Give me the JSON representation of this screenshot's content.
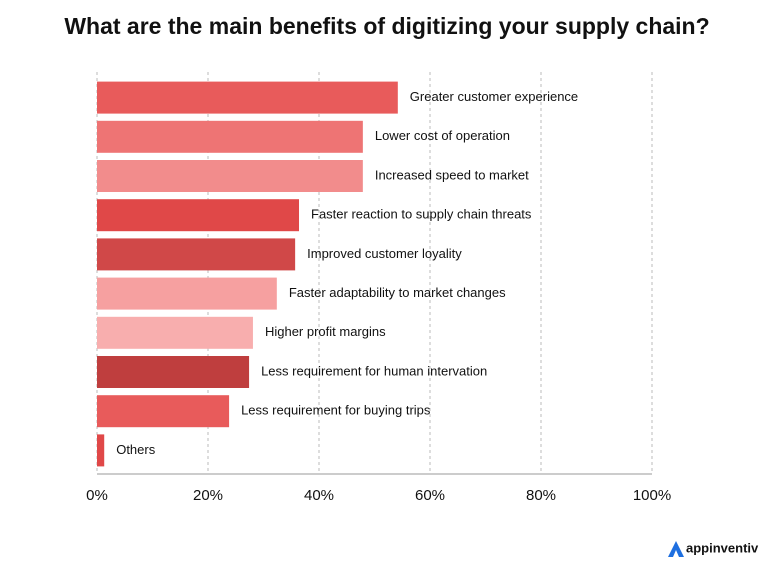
{
  "chart_data": {
    "type": "bar",
    "orientation": "horizontal",
    "title": "What are the main benefits of digitizing your supply chain?",
    "categories": [
      "Greater customer experience",
      "Lower cost of operation",
      "Increased speed to market",
      "Faster reaction to supply chain threats",
      "Improved customer loyality",
      "Faster adaptability to market changes",
      "Higher profit margins",
      "Less requirement for human intervation",
      "Less requirement for buying trips",
      "Others"
    ],
    "values": [
      54.2,
      47.9,
      47.9,
      36.4,
      35.7,
      32.4,
      28.1,
      27.4,
      23.8,
      1.3
    ],
    "colors": [
      "#e85b5b",
      "#ee7474",
      "#f28c8c",
      "#e04848",
      "#d04848",
      "#f6a0a0",
      "#f8aeae",
      "#bf3e3e",
      "#e85b5b",
      "#e04848"
    ],
    "xlim": [
      0,
      100
    ],
    "xticks": [
      {
        "value": 0,
        "label": "0%"
      },
      {
        "value": 20,
        "label": "20%"
      },
      {
        "value": 40,
        "label": "40%"
      },
      {
        "value": 60,
        "label": "60%"
      },
      {
        "value": 80,
        "label": "80%"
      },
      {
        "value": 100,
        "label": "100%"
      }
    ],
    "grid": true
  },
  "brand": "appinventiv"
}
